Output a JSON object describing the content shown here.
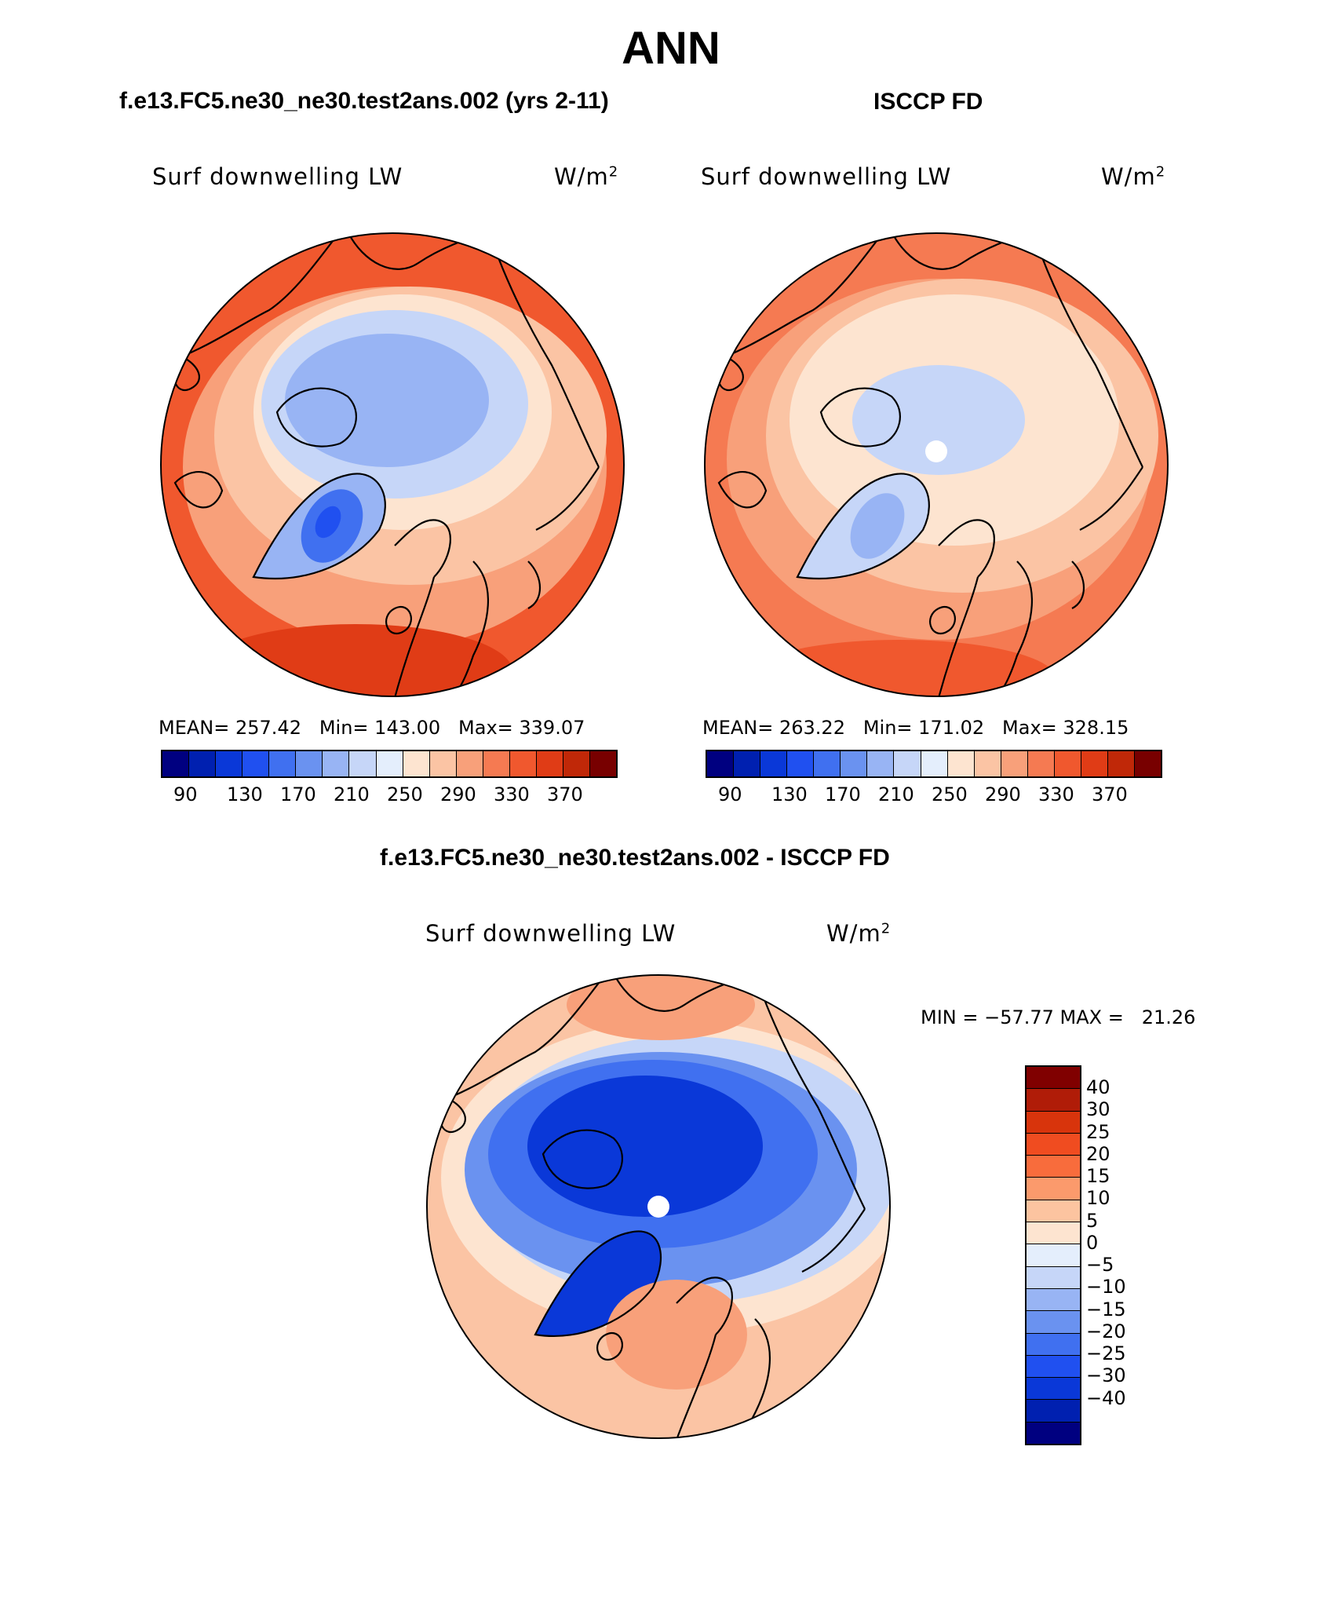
{
  "page": {
    "title": "ANN"
  },
  "panels": {
    "model": {
      "case_title": "f.e13.FC5.ne30_ne30.test2ans.002 (yrs 2-11)",
      "variable": "Surf downwelling LW",
      "units": "W/m",
      "units_exp": "2",
      "stats": "MEAN= 257.42   Min= 143.00   Max= 339.07"
    },
    "obs": {
      "case_title": "ISCCP FD",
      "variable": "Surf downwelling LW",
      "units": "W/m",
      "units_exp": "2",
      "stats": "MEAN= 263.22   Min= 171.02   Max= 328.15"
    },
    "diff": {
      "case_title": "f.e13.FC5.ne30_ne30.test2ans.002 - ISCCP FD",
      "variable": "Surf downwelling LW",
      "units": "W/m",
      "units_exp": "2",
      "stats": "MIN = −57.77 MAX =   21.26"
    }
  },
  "colorbars": {
    "absolute": {
      "colors": [
        "#000080",
        "#0020b0",
        "#0a38d8",
        "#2050f0",
        "#4070f0",
        "#6a92f0",
        "#98b4f4",
        "#c6d6f8",
        "#e4eefc",
        "#fde4d0",
        "#fbc4a4",
        "#f8a07a",
        "#f57a52",
        "#f0582e",
        "#e03c16",
        "#c02808",
        "#780000"
      ],
      "tick_labels": [
        "90",
        "130",
        "170",
        "210",
        "250",
        "290",
        "330",
        "370"
      ]
    },
    "difference": {
      "colors": [
        "#800000",
        "#b01c08",
        "#d8340c",
        "#f04c20",
        "#f86c3c",
        "#fb9a6c",
        "#fcc4a0",
        "#fde4d0",
        "#e4eefc",
        "#c6d6f8",
        "#98b4f4",
        "#6a92f0",
        "#4070f0",
        "#2050f0",
        "#0a38d8",
        "#0020b0",
        "#000080"
      ],
      "tick_labels": [
        "40",
        "30",
        "25",
        "20",
        "15",
        "10",
        "5",
        "0",
        "−5",
        "−10",
        "−15",
        "−20",
        "−25",
        "−30",
        "−40"
      ]
    }
  },
  "map_fields": {
    "colors": {
      "ocean_warm_edge": "#f0582e",
      "ocean_warm": "#f8a07a",
      "ocean_mild": "#fde4d0",
      "arctic_light": "#c6d6f8",
      "arctic_mid": "#98b4f4",
      "greenland_core": "#2050f0",
      "diff_blue_deep": "#0a38d8",
      "diff_blue_mid": "#4070f0",
      "diff_warm": "#fbc4a4"
    }
  }
}
